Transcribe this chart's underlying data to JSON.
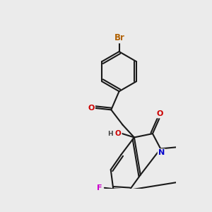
{
  "bg_color": "#ebebeb",
  "bond_color": "#1a1a1a",
  "bond_width": 1.5,
  "atom_colors": {
    "Br": "#b06000",
    "O": "#cc0000",
    "N": "#0000cc",
    "F": "#cc00cc",
    "H": "#444444"
  },
  "font_size": 8.0
}
